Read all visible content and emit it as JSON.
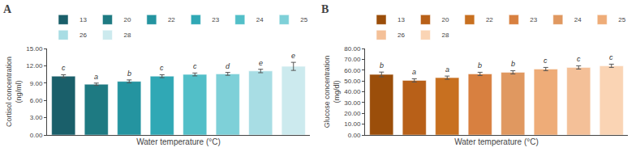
{
  "chart_data": [
    {
      "type": "bar",
      "title": "A",
      "xlabel": "Water temperature (°C)",
      "ylabel": "Cortisol concentration\n(ng/ml)",
      "categories": [
        "13",
        "20",
        "22",
        "23",
        "24",
        "25",
        "26",
        "28"
      ],
      "values": [
        10.2,
        8.8,
        9.3,
        10.2,
        10.5,
        10.6,
        11.1,
        11.9
      ],
      "errors": [
        0.25,
        0.2,
        0.25,
        0.25,
        0.25,
        0.25,
        0.3,
        0.7
      ],
      "annotations": [
        "c",
        "a",
        "b",
        "c",
        "c",
        "d",
        "e",
        "e"
      ],
      "colors": [
        "#1a5f6a",
        "#1e7a82",
        "#2494a0",
        "#30a8b5",
        "#52bfc8",
        "#7ed0d8",
        "#a8dde4",
        "#cceaee"
      ],
      "ylim": [
        0,
        15.0
      ],
      "yticks": [
        {
          "value": 0.0,
          "label": "0.00"
        },
        {
          "value": 3.0,
          "label": "3.00"
        },
        {
          "value": 6.0,
          "label": "6.00"
        },
        {
          "value": 9.0,
          "label": "9.00"
        },
        {
          "value": 12.0,
          "label": "12.00"
        },
        {
          "value": 15.0,
          "label": "15.00"
        }
      ],
      "grid": false,
      "legend": "upper left",
      "tick_labels": "y"
    },
    {
      "type": "bar",
      "title": "B",
      "xlabel": "Water temperature (°C)",
      "ylabel": "Glucose concentration\n(mg/dl)",
      "categories": [
        "13",
        "20",
        "22",
        "23",
        "24",
        "25",
        "26",
        "28"
      ],
      "values": [
        56.0,
        50.5,
        53.0,
        56.5,
        58.0,
        61.0,
        62.5,
        64.0
      ],
      "errors": [
        2.2,
        1.5,
        1.5,
        1.5,
        1.5,
        1.5,
        1.5,
        1.5
      ],
      "annotations": [
        "b",
        "a",
        "a",
        "b",
        "b",
        "c",
        "c",
        "c"
      ],
      "colors": [
        "#9b4e0a",
        "#b86018",
        "#c87020",
        "#d88040",
        "#e09860",
        "#eeac78",
        "#f4c098",
        "#fad4b4"
      ],
      "ylim": [
        0,
        80.0
      ],
      "yticks": [
        {
          "value": 0.0,
          "label": "0.00"
        },
        {
          "value": 10.0,
          "label": "10.00"
        },
        {
          "value": 20.0,
          "label": "20.00"
        },
        {
          "value": 30.0,
          "label": "30.00"
        },
        {
          "value": 40.0,
          "label": "40.00"
        },
        {
          "value": 50.0,
          "label": "50.00"
        },
        {
          "value": 60.0,
          "label": "60.00"
        },
        {
          "value": 70.0,
          "label": "70.00"
        },
        {
          "value": 80.0,
          "label": "80.00"
        }
      ],
      "grid": false,
      "legend": "upper left",
      "tick_labels": "y"
    }
  ]
}
